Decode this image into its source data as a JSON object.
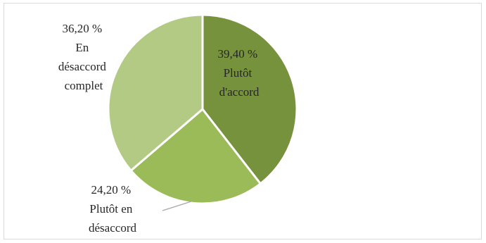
{
  "chart_data": {
    "type": "pie",
    "slices": [
      {
        "pct_label": "39,40 %",
        "category": [
          "Plutôt",
          "d'accord"
        ],
        "value": 39.4,
        "color": "#76923c"
      },
      {
        "pct_label": "24,20 %",
        "category": [
          "Plutôt en",
          "désaccord"
        ],
        "value": 24.2,
        "color": "#9bbb59"
      },
      {
        "pct_label": "36,20 %",
        "category": [
          "En",
          "désaccord",
          "complet"
        ],
        "value": 36.2,
        "color": "#b3ca84"
      }
    ],
    "start_angle_deg": 0,
    "direction": "clockwise",
    "slice_border_color": "#ffffff"
  }
}
